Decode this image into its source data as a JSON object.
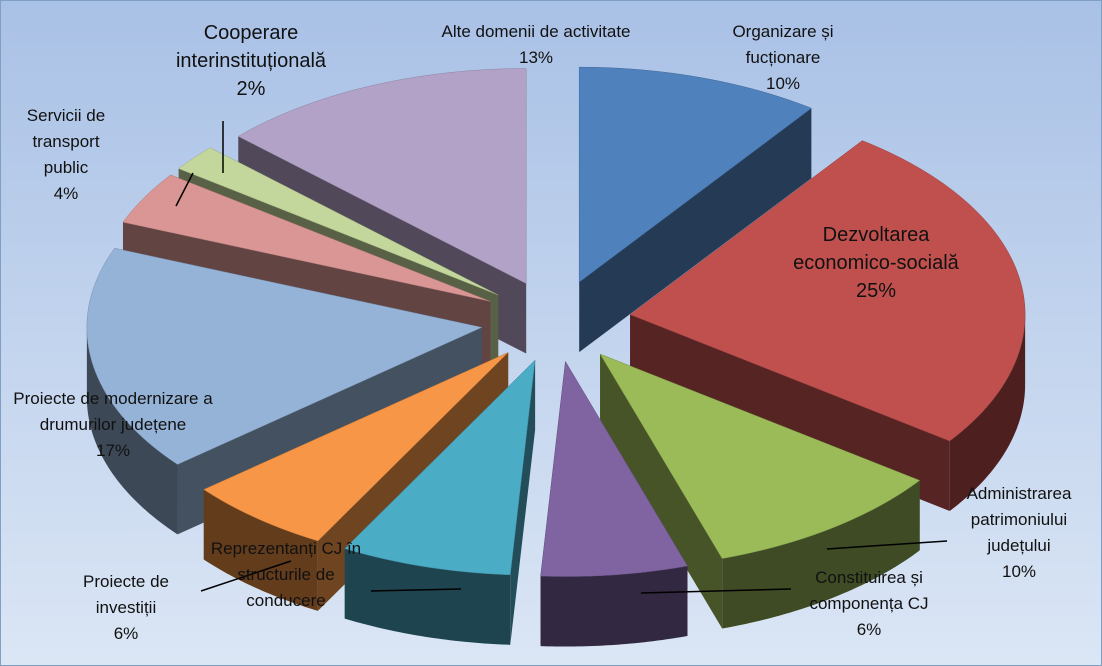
{
  "chart_data": {
    "type": "pie3d",
    "categories": [
      "Organizare și fucționare",
      "Dezvoltarea economico-socială",
      "Administrarea patrimoniului județului",
      "Constituirea și componența CJ",
      "Reprezentanți CJ în structurile de conducere",
      "Proiecte de investiții",
      "Proiecte de modernizare a drumurilor județene",
      "Servicii de transport public",
      "Cooperare interinstituțională",
      "Alte domenii de activitate"
    ],
    "values": [
      10,
      25,
      10,
      6,
      7,
      6,
      17,
      4,
      2,
      13
    ],
    "value_labels": [
      "10%",
      "25%",
      "10%",
      "6%",
      null,
      "6%",
      "17%",
      "4%",
      "2%",
      "13%"
    ],
    "colors": [
      "#4f81bd",
      "#c0504d",
      "#9bbb59",
      "#8064a2",
      "#4bacc6",
      "#f79646",
      "#95b3d7",
      "#d99694",
      "#c3d69b",
      "#b3a2c7"
    ]
  }
}
